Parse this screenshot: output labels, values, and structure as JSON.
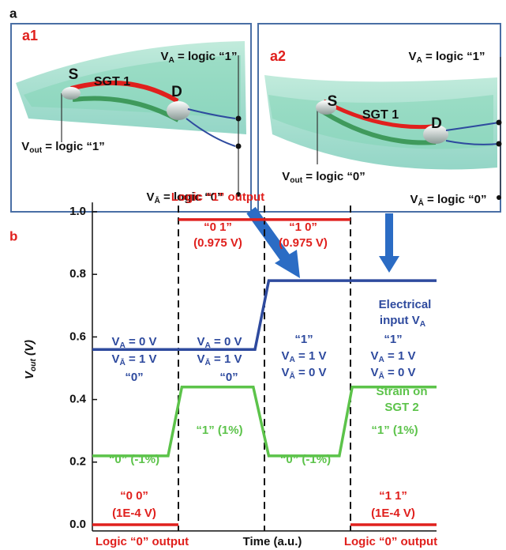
{
  "panel_labels": {
    "a": "a",
    "b": "b"
  },
  "diagrams": [
    {
      "label": "a1",
      "source": "S",
      "channel": "SGT 1",
      "drain": "D",
      "va": [
        "V",
        {
          "sub": "A"
        },
        " = logic “1”"
      ],
      "vout": [
        "V",
        {
          "sub": "out"
        },
        " = logic “1”"
      ],
      "vabar": [
        "V",
        {
          "sub": "Ā"
        },
        " = logic “0”"
      ]
    },
    {
      "label": "a2",
      "source": "S",
      "channel": "SGT 1",
      "drain": "D",
      "va": [
        "V",
        {
          "sub": "A"
        },
        " = logic “1”"
      ],
      "vout": [
        "V",
        {
          "sub": "out"
        },
        " = logic “0”"
      ],
      "vabar": [
        "V",
        {
          "sub": "Ā"
        },
        " = logic “0”"
      ]
    }
  ],
  "chart_data": {
    "type": "line",
    "xlabel": "Time (a.u.)",
    "ylabel": [
      "V",
      {
        "sub": "out"
      },
      " (V)"
    ],
    "xlim": [
      0,
      4
    ],
    "ylim": [
      -0.02,
      1.03
    ],
    "yticks": [
      {
        "value": 0,
        "label": "0.0"
      },
      0.2,
      0.4,
      0.6,
      0.8,
      {
        "value": 1,
        "label": "1.0"
      }
    ],
    "dividers": [
      1,
      2,
      3
    ],
    "series": [
      {
        "color": "#e0201d",
        "x": [
          0,
          1,
          1,
          1,
          3,
          3,
          3,
          4
        ],
        "values": [
          0.0001,
          0.0001,
          null,
          0.975,
          0.975,
          null,
          0.0001,
          0.0001
        ]
      },
      {
        "color": "#2e4a9e",
        "x": [
          0,
          1.89,
          2.05,
          4
        ],
        "values": [
          0.56,
          0.56,
          0.78,
          0.78
        ]
      },
      {
        "color": "#5cc34a",
        "x": [
          0,
          0.88,
          1.04,
          1.87,
          2.05,
          2.87,
          3.02,
          4
        ],
        "values": [
          0.22,
          0.22,
          0.44,
          0.44,
          0.22,
          0.22,
          0.44,
          0.44
        ]
      }
    ],
    "annotations": [
      {
        "text": "Logic “1” output",
        "color": "#e0201d"
      },
      {
        "text": "“0 1”",
        "color": "#e0201d"
      },
      {
        "text": "(0.975 V)",
        "color": "#e0201d"
      },
      {
        "text": "“1 0”",
        "color": "#e0201d"
      },
      {
        "text": "(0.975 V)",
        "color": "#e0201d"
      },
      {
        "text": "Electrical",
        "color": "#2e4a9e"
      },
      {
        "text": [
          "input V",
          {
            "sub": "A"
          }
        ],
        "color": "#2e4a9e"
      },
      {
        "text": [
          "V",
          {
            "sub": "A"
          },
          " = 0 V"
        ],
        "color": "#2e4a9e"
      },
      {
        "text": [
          "V",
          {
            "sub": "Ā"
          },
          " = 1 V"
        ],
        "color": "#2e4a9e"
      },
      {
        "text": "“0”",
        "color": "#2e4a9e"
      },
      {
        "text": [
          "V",
          {
            "sub": "A"
          },
          " = 0 V"
        ],
        "color": "#2e4a9e"
      },
      {
        "text": [
          "V",
          {
            "sub": "Ā"
          },
          " = 1 V"
        ],
        "color": "#2e4a9e"
      },
      {
        "text": "“0”",
        "color": "#2e4a9e"
      },
      {
        "text": "“1”",
        "color": "#2e4a9e"
      },
      {
        "text": [
          "V",
          {
            "sub": "A"
          },
          " = 1 V"
        ],
        "color": "#2e4a9e"
      },
      {
        "text": [
          "V",
          {
            "sub": "Ā"
          },
          " = 0 V"
        ],
        "color": "#2e4a9e"
      },
      {
        "text": "“1”",
        "color": "#2e4a9e"
      },
      {
        "text": [
          "V",
          {
            "sub": "A"
          },
          " = 1 V"
        ],
        "color": "#2e4a9e"
      },
      {
        "text": [
          "V",
          {
            "sub": "Ā"
          },
          " = 0 V"
        ],
        "color": "#2e4a9e"
      },
      {
        "text": "Strain on",
        "color": "#5cc34a"
      },
      {
        "text": "SGT 2",
        "color": "#5cc34a"
      },
      {
        "text": "“1” (1%)",
        "color": "#5cc34a"
      },
      {
        "text": "“0” (-1%)",
        "color": "#5cc34a"
      },
      {
        "text": "“0” (-1%)",
        "color": "#5cc34a"
      },
      {
        "text": "“1” (1%)",
        "color": "#5cc34a"
      },
      {
        "text": "“0 0”",
        "color": "#e0201d"
      },
      {
        "text": "(1E-4 V)",
        "color": "#e0201d"
      },
      {
        "text": "“1 1”",
        "color": "#e0201d"
      },
      {
        "text": "(1E-4 V)",
        "color": "#e0201d"
      },
      {
        "text": "Logic “0” output",
        "color": "#e0201d"
      },
      {
        "text": "Logic “0” output",
        "color": "#e0201d"
      }
    ]
  }
}
